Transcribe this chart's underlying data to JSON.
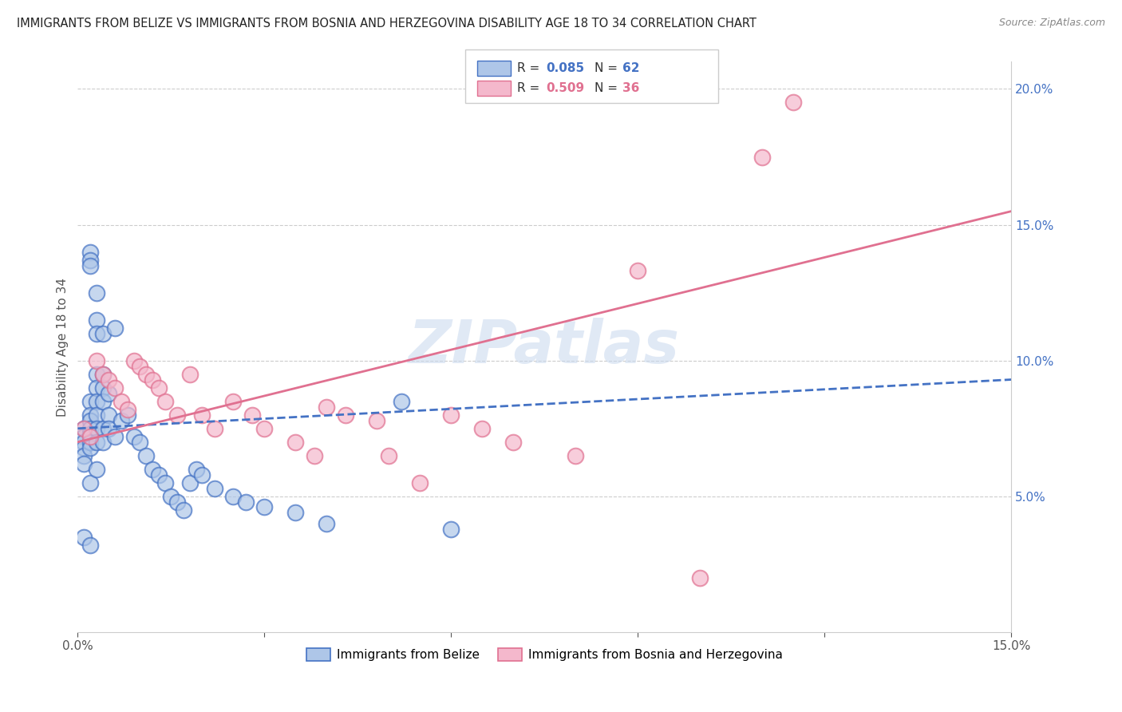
{
  "title": "IMMIGRANTS FROM BELIZE VS IMMIGRANTS FROM BOSNIA AND HERZEGOVINA DISABILITY AGE 18 TO 34 CORRELATION CHART",
  "source": "Source: ZipAtlas.com",
  "ylabel": "Disability Age 18 to 34",
  "xlim": [
    0.0,
    0.15
  ],
  "ylim": [
    0.0,
    0.21
  ],
  "belize_R": 0.085,
  "belize_N": 62,
  "bosnia_R": 0.509,
  "bosnia_N": 36,
  "belize_color": "#aec6e8",
  "belize_line_color": "#4472c4",
  "bosnia_color": "#f4b8cc",
  "bosnia_line_color": "#e07090",
  "watermark": "ZIPatlas",
  "belize_x": [
    0.001,
    0.001,
    0.001,
    0.001,
    0.001,
    0.001,
    0.002,
    0.002,
    0.002,
    0.002,
    0.002,
    0.002,
    0.002,
    0.002,
    0.002,
    0.002,
    0.003,
    0.003,
    0.003,
    0.003,
    0.003,
    0.003,
    0.003,
    0.003,
    0.003,
    0.004,
    0.004,
    0.004,
    0.004,
    0.004,
    0.004,
    0.005,
    0.005,
    0.005,
    0.006,
    0.006,
    0.007,
    0.008,
    0.009,
    0.01,
    0.011,
    0.012,
    0.013,
    0.014,
    0.015,
    0.016,
    0.017,
    0.018,
    0.019,
    0.02,
    0.022,
    0.025,
    0.027,
    0.03,
    0.035,
    0.04,
    0.052,
    0.06,
    0.002,
    0.003,
    0.001,
    0.002
  ],
  "belize_y": [
    0.075,
    0.072,
    0.07,
    0.068,
    0.065,
    0.062,
    0.14,
    0.137,
    0.135,
    0.085,
    0.08,
    0.078,
    0.075,
    0.073,
    0.07,
    0.068,
    0.125,
    0.115,
    0.11,
    0.095,
    0.09,
    0.085,
    0.08,
    0.075,
    0.07,
    0.11,
    0.095,
    0.09,
    0.085,
    0.075,
    0.07,
    0.088,
    0.08,
    0.075,
    0.112,
    0.072,
    0.078,
    0.08,
    0.072,
    0.07,
    0.065,
    0.06,
    0.058,
    0.055,
    0.05,
    0.048,
    0.045,
    0.055,
    0.06,
    0.058,
    0.053,
    0.05,
    0.048,
    0.046,
    0.044,
    0.04,
    0.085,
    0.038,
    0.055,
    0.06,
    0.035,
    0.032
  ],
  "bosnia_x": [
    0.001,
    0.002,
    0.003,
    0.004,
    0.005,
    0.006,
    0.007,
    0.008,
    0.009,
    0.01,
    0.011,
    0.012,
    0.013,
    0.014,
    0.016,
    0.018,
    0.02,
    0.022,
    0.025,
    0.028,
    0.03,
    0.035,
    0.038,
    0.04,
    0.043,
    0.048,
    0.05,
    0.055,
    0.06,
    0.065,
    0.07,
    0.08,
    0.09,
    0.1,
    0.11,
    0.115
  ],
  "bosnia_y": [
    0.075,
    0.072,
    0.1,
    0.095,
    0.093,
    0.09,
    0.085,
    0.082,
    0.1,
    0.098,
    0.095,
    0.093,
    0.09,
    0.085,
    0.08,
    0.095,
    0.08,
    0.075,
    0.085,
    0.08,
    0.075,
    0.07,
    0.065,
    0.083,
    0.08,
    0.078,
    0.065,
    0.055,
    0.08,
    0.075,
    0.07,
    0.065,
    0.133,
    0.02,
    0.175,
    0.195
  ]
}
